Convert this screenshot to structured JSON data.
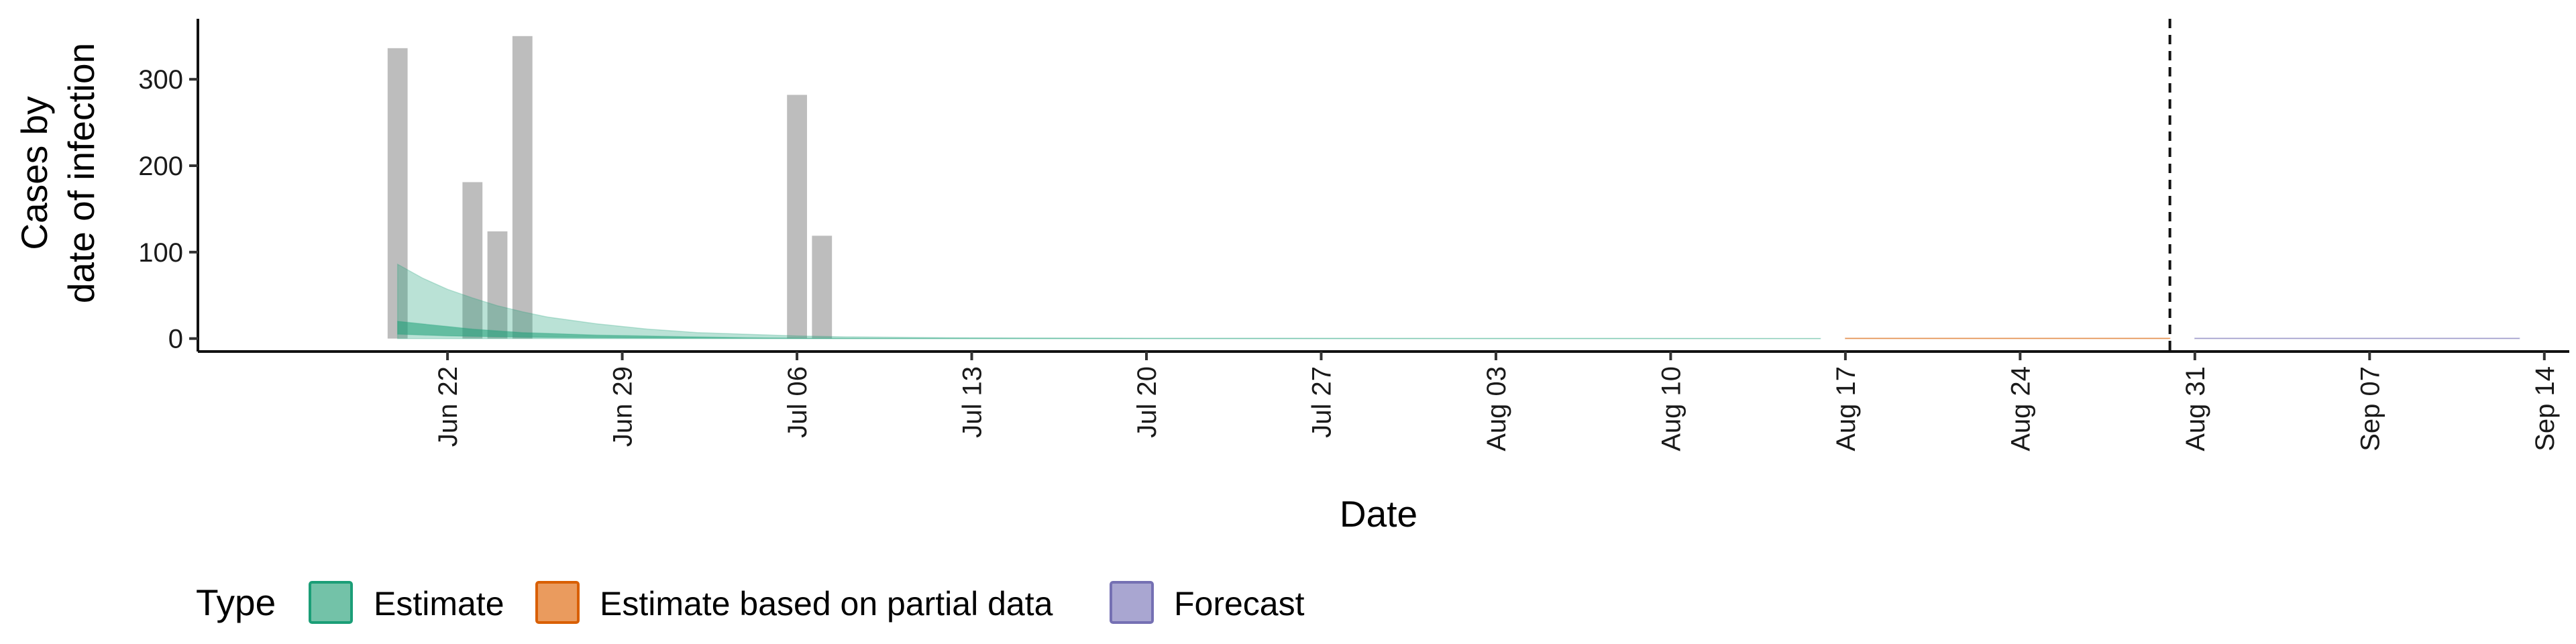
{
  "chart_data": {
    "type": "bar",
    "xlabel": "Date",
    "ylabel_lines": [
      "Cases by",
      "date of infection"
    ],
    "x_range": [
      "2020-06-12",
      "2020-09-15"
    ],
    "ylim": [
      -15,
      370
    ],
    "y_ticks": [
      0,
      100,
      200,
      300
    ],
    "x_ticks": [
      {
        "date": "2020-06-22",
        "label": "Jun 22"
      },
      {
        "date": "2020-06-29",
        "label": "Jun 29"
      },
      {
        "date": "2020-07-06",
        "label": "Jul 06"
      },
      {
        "date": "2020-07-13",
        "label": "Jul 13"
      },
      {
        "date": "2020-07-20",
        "label": "Jul 20"
      },
      {
        "date": "2020-07-27",
        "label": "Jul 27"
      },
      {
        "date": "2020-08-03",
        "label": "Aug 03"
      },
      {
        "date": "2020-08-10",
        "label": "Aug 10"
      },
      {
        "date": "2020-08-17",
        "label": "Aug 17"
      },
      {
        "date": "2020-08-24",
        "label": "Aug 24"
      },
      {
        "date": "2020-08-31",
        "label": "Aug 31"
      },
      {
        "date": "2020-09-07",
        "label": "Sep 07"
      },
      {
        "date": "2020-09-14",
        "label": "Sep 14"
      }
    ],
    "reported_cases": {
      "color": "#bdbdbd",
      "dates": [
        "2020-06-20",
        "2020-06-23",
        "2020-06-24",
        "2020-06-25",
        "2020-07-06",
        "2020-07-07"
      ],
      "values": [
        336,
        181,
        124,
        350,
        282,
        119
      ]
    },
    "series": [
      {
        "name": "Estimate",
        "color": "#1b9e77",
        "dates": [
          "2020-06-20",
          "2020-06-21",
          "2020-06-22",
          "2020-06-23",
          "2020-06-24",
          "2020-06-25",
          "2020-06-26",
          "2020-06-28",
          "2020-06-30",
          "2020-07-02",
          "2020-07-04",
          "2020-07-06",
          "2020-07-08",
          "2020-07-12",
          "2020-07-20",
          "2020-08-16"
        ],
        "outer_upper": [
          86,
          70,
          57,
          47,
          38,
          31,
          25,
          17,
          11,
          7,
          5,
          3,
          2,
          1,
          0.4,
          0.1
        ],
        "outer_lower": [
          0,
          0,
          0,
          0,
          0,
          0,
          0,
          0,
          0,
          0,
          0,
          0,
          0,
          0,
          0,
          0
        ],
        "inner_upper": [
          20,
          17,
          14,
          11,
          9,
          7,
          6,
          4,
          3,
          2,
          1,
          0.6,
          0.4,
          0.2,
          0.1,
          0
        ],
        "inner_lower": [
          5,
          4,
          3,
          2.5,
          2,
          1.5,
          1.2,
          0.8,
          0.5,
          0.3,
          0.2,
          0.1,
          0,
          0,
          0,
          0
        ]
      },
      {
        "name": "Estimate based on partial data",
        "color": "#d95f02",
        "dates": [
          "2020-08-17",
          "2020-08-30"
        ],
        "outer_upper": [
          0.5,
          0.5
        ],
        "outer_lower": [
          0,
          0
        ],
        "inner_upper": [
          0.3,
          0.3
        ],
        "inner_lower": [
          0,
          0
        ]
      },
      {
        "name": "Forecast",
        "color": "#7570b3",
        "dates": [
          "2020-08-31",
          "2020-09-13"
        ],
        "outer_upper": [
          0.5,
          0.5
        ],
        "outer_lower": [
          0,
          0
        ],
        "inner_upper": [
          0.3,
          0.3
        ],
        "inner_lower": [
          0,
          0
        ]
      }
    ],
    "vline_date": "2020-08-30",
    "legend": {
      "title": "Type",
      "position": "bottom",
      "items": [
        {
          "label": "Estimate",
          "fill": "#73c2a8",
          "stroke": "#1b9e77"
        },
        {
          "label": "Estimate based on partial data",
          "fill": "#ea9b5e",
          "stroke": "#d95f02"
        },
        {
          "label": "Forecast",
          "fill": "#a9a6d1",
          "stroke": "#7570b3"
        }
      ]
    }
  }
}
